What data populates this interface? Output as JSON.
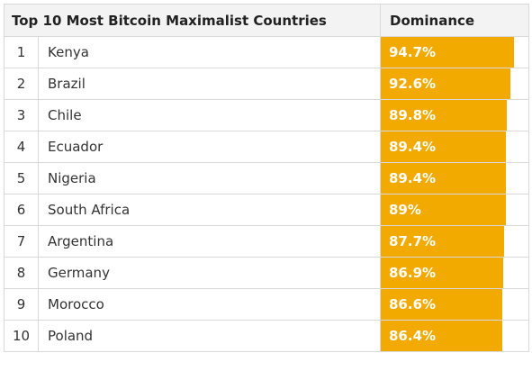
{
  "table": {
    "title": "Top 10 Most Bitcoin Maximalist Countries",
    "value_header": "Dominance",
    "colors": {
      "bar": "#f2a900",
      "header_bg": "#f3f3f3"
    }
  },
  "chart_data": {
    "type": "table",
    "title": "Top 10 Most Bitcoin Maximalist Countries",
    "columns": [
      "",
      "Top 10 Most Bitcoin Maximalist Countries",
      "Dominance"
    ],
    "ylim": [
      0,
      100
    ],
    "rows": [
      {
        "rank": "1",
        "country": "Kenya",
        "value": 94.7,
        "label": "94.7%"
      },
      {
        "rank": "2",
        "country": "Brazil",
        "value": 92.6,
        "label": "92.6%"
      },
      {
        "rank": "3",
        "country": "Chile",
        "value": 89.8,
        "label": "89.8%"
      },
      {
        "rank": "4",
        "country": "Ecuador",
        "value": 89.4,
        "label": "89.4%"
      },
      {
        "rank": "5",
        "country": "Nigeria",
        "value": 89.4,
        "label": "89.4%"
      },
      {
        "rank": "6",
        "country": "South Africa",
        "value": 89,
        "label": "89%"
      },
      {
        "rank": "7",
        "country": "Argentina",
        "value": 87.7,
        "label": "87.7%"
      },
      {
        "rank": "8",
        "country": "Germany",
        "value": 86.9,
        "label": "86.9%"
      },
      {
        "rank": "9",
        "country": "Morocco",
        "value": 86.6,
        "label": "86.6%"
      },
      {
        "rank": "10",
        "country": "Poland",
        "value": 86.4,
        "label": "86.4%"
      }
    ]
  }
}
